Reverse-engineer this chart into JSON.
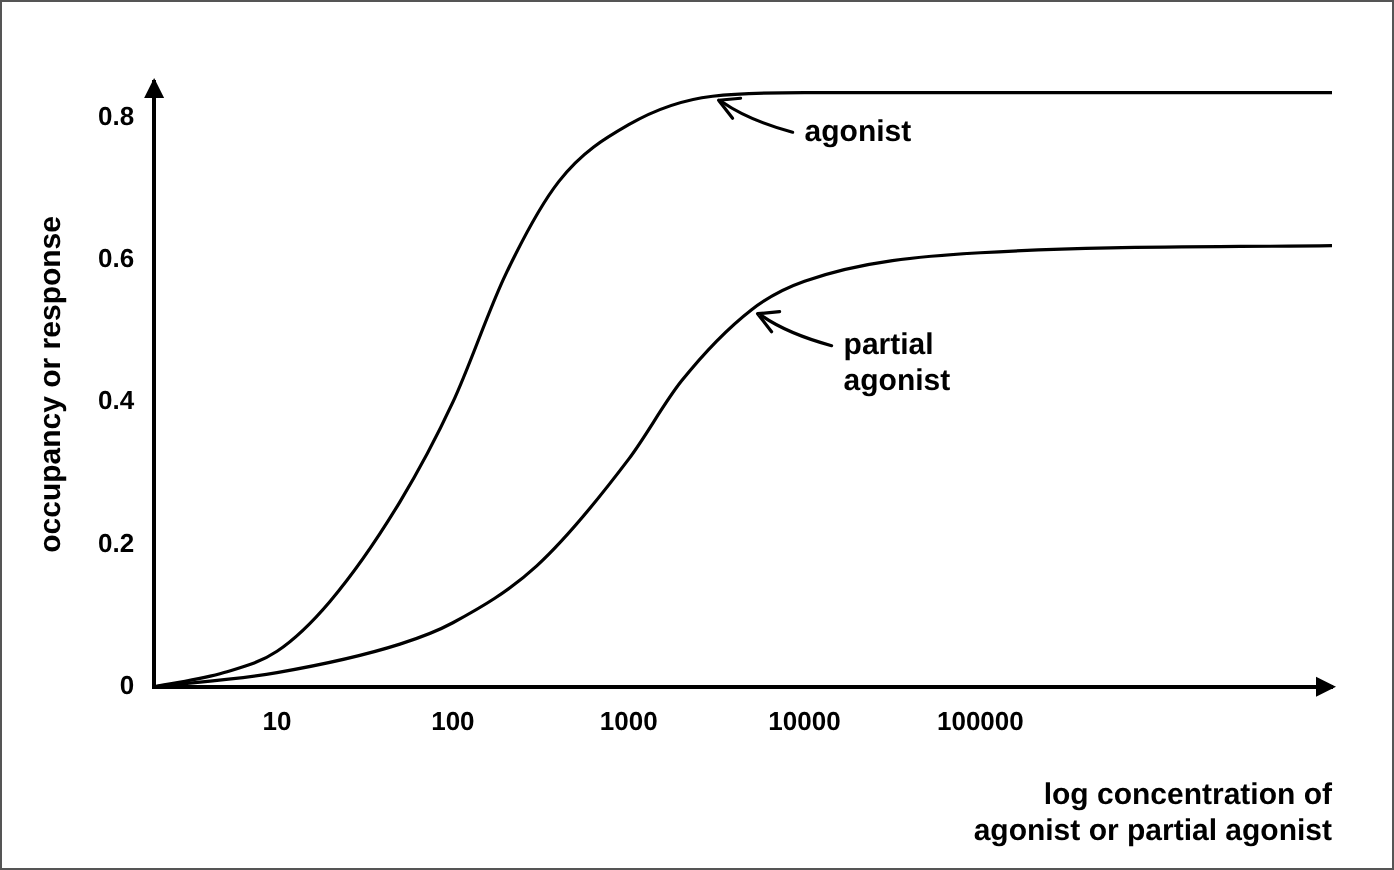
{
  "chart_data": {
    "type": "line",
    "xlabel": "log concentration of\nagonist or partial agonist",
    "ylabel": "occupancy or response",
    "log": "x",
    "xlim": [
      2,
      10000000
    ],
    "xticks": [
      10,
      100,
      1000,
      10000,
      100000
    ],
    "ylim": [
      0,
      0.85
    ],
    "yticks": [
      0,
      0.2,
      0.4,
      0.6,
      0.8
    ],
    "grid": false,
    "legend": false,
    "marker": "none",
    "line_style": "solid",
    "x": [
      2,
      5,
      10,
      20,
      50,
      100,
      200,
      400,
      1000,
      3000,
      10000,
      100000,
      10000000
    ],
    "series": [
      {
        "color": "#000000",
        "values": [
          0,
          0.02,
          0.05,
          0.12,
          0.26,
          0.4,
          0.58,
          0.71,
          0.79,
          0.83,
          0.835,
          0.835,
          0.835
        ]
      },
      {
        "color": "#000000",
        "x": [
          2,
          10,
          50,
          100,
          300,
          1000,
          2000,
          5000,
          10000,
          100000,
          10000000
        ],
        "values": [
          0,
          0.02,
          0.06,
          0.09,
          0.17,
          0.32,
          0.43,
          0.53,
          0.57,
          0.61,
          0.62
        ]
      }
    ],
    "annotations": [
      {
        "text": "agonist",
        "x": 3000,
        "y": 0.83
      },
      {
        "text": "partial\nagonist",
        "x": 5000,
        "y": 0.53
      }
    ]
  }
}
